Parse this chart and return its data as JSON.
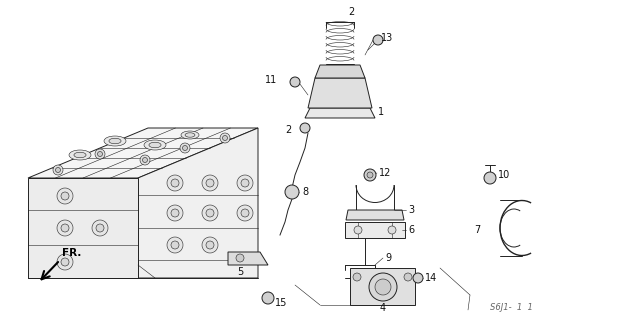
{
  "bg_color": "#ffffff",
  "line_color": "#222222",
  "footer_text": "S6J1-  1  1",
  "lw": 0.7,
  "lw_thin": 0.4,
  "lw_bold": 1.0
}
